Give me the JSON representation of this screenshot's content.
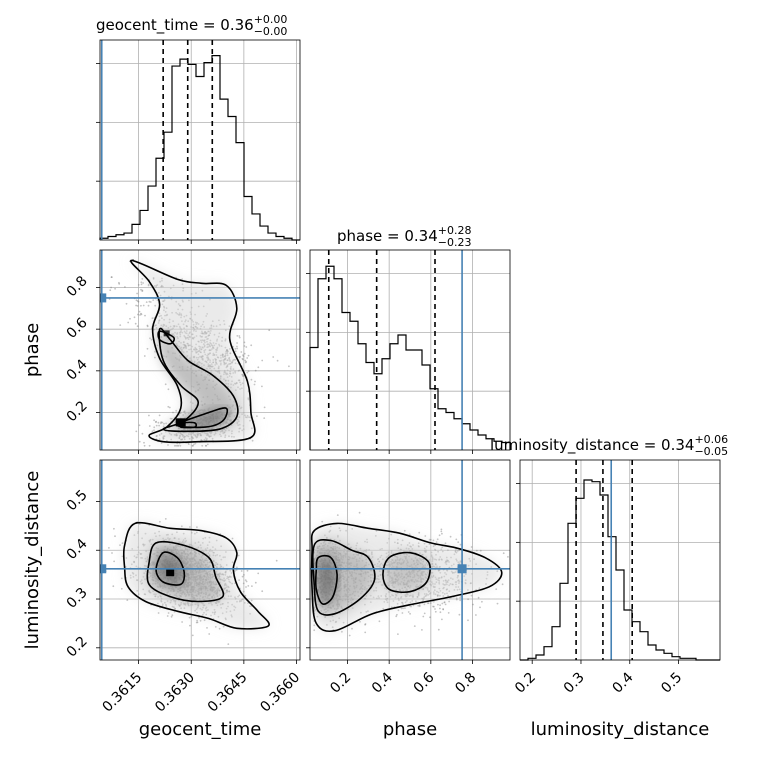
{
  "chart_data": {
    "type": "corner",
    "parameters": [
      {
        "name": "geocent_time",
        "range": [
          0.3604,
          0.3661
        ],
        "ticks": [
          0.3615,
          0.363,
          0.3645,
          0.366
        ],
        "tick_labels": [
          "0.3615",
          "0.3630",
          "0.3645",
          "0.3660"
        ],
        "truth": 0.36045,
        "quantiles": [
          0.3622,
          0.3629,
          0.3636
        ],
        "title": {
          "main": "geocent_time = 0.36",
          "sup": "+0.00",
          "sub": "−0.00"
        },
        "axis_label": "geocent_time",
        "hist": [
          1,
          2,
          3,
          4,
          9,
          17,
          31,
          47,
          62,
          100,
          104,
          101,
          94,
          102,
          106,
          81,
          71,
          56,
          25,
          15,
          8,
          4,
          2,
          1,
          0
        ],
        "hist_ylim": [
          0,
          115
        ]
      },
      {
        "name": "phase",
        "range": [
          0.02,
          0.98
        ],
        "ticks": [
          0.2,
          0.4,
          0.6,
          0.8
        ],
        "tick_labels": [
          "0.2",
          "0.4",
          "0.6",
          "0.8"
        ],
        "truth": 0.75,
        "quantiles": [
          0.11,
          0.34,
          0.62
        ],
        "title": {
          "main": "phase = 0.34",
          "sup": "+0.28",
          "sub": "−0.23"
        },
        "axis_label": "phase",
        "hist": [
          82,
          137,
          147,
          137,
          110,
          103,
          85,
          70,
          61,
          73,
          85,
          92,
          80,
          80,
          68,
          49,
          33,
          30,
          25,
          21,
          16,
          12,
          9,
          7,
          6
        ],
        "hist_ylim": [
          0,
          160
        ]
      },
      {
        "name": "luminosity_distance",
        "range": [
          0.175,
          0.585
        ],
        "ticks": [
          0.2,
          0.3,
          0.4,
          0.5
        ],
        "tick_labels": [
          "0.2",
          "0.3",
          "0.4",
          "0.5"
        ],
        "truth": 0.362,
        "quantiles": [
          0.29,
          0.345,
          0.405
        ],
        "title": {
          "main": "luminosity_distance = 0.34",
          "sup": "+0.06",
          "sub": "−0.05"
        },
        "axis_label": "luminosity_distance",
        "hist": [
          0,
          1,
          3,
          8,
          20,
          46,
          82,
          97,
          108,
          107,
          99,
          74,
          54,
          30,
          23,
          17,
          9,
          6,
          4,
          2,
          1,
          1,
          0,
          0,
          0
        ],
        "hist_ylim": [
          0,
          120
        ]
      }
    ],
    "side_tick_labels": {
      "phase": [
        "0.2",
        "0.4",
        "0.6",
        "0.8"
      ],
      "luminosity_distance": [
        "0.2",
        "0.3",
        "0.4",
        "0.5"
      ]
    },
    "truth_color": "#4682b4",
    "line_color": "#000000",
    "grid": true
  }
}
